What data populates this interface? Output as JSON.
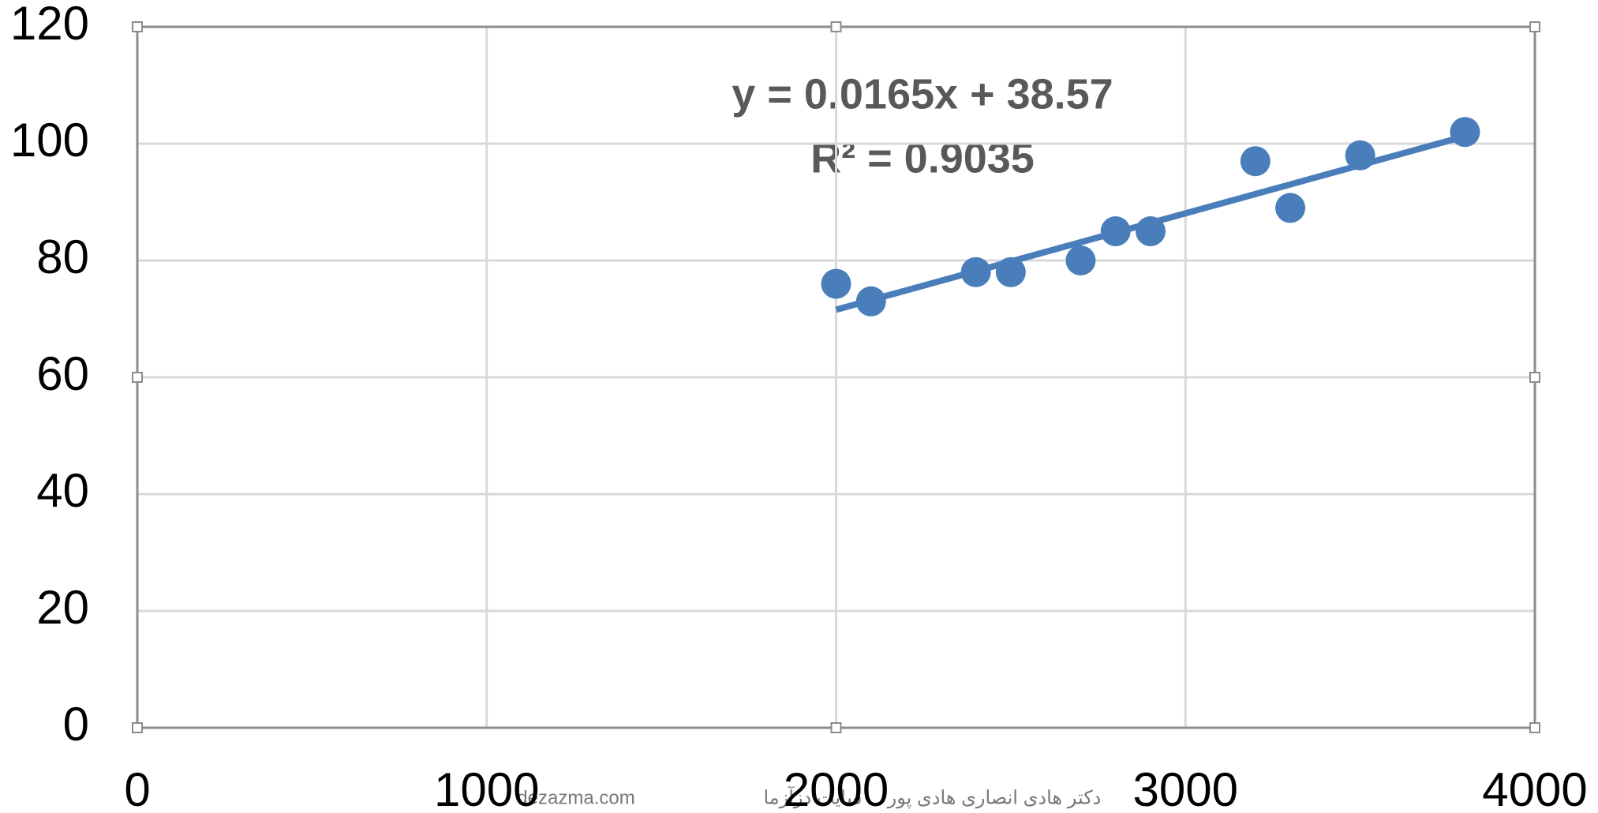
{
  "chart_data": {
    "type": "scatter",
    "x": [
      2000,
      2100,
      2400,
      2500,
      2700,
      2800,
      2900,
      3200,
      3300,
      3500,
      3800
    ],
    "values": [
      76,
      73,
      78,
      78,
      80,
      85,
      85,
      97,
      89,
      98,
      102
    ],
    "color": "#4a7ebb",
    "trendline": {
      "equation": "y = 0.0165x + 38.57",
      "r2": "R² = 0.9035",
      "color": "#4a7ebb",
      "x": [
        2000,
        3800
      ],
      "y": [
        71.57,
        101.27
      ]
    },
    "xlim": [
      0,
      4000
    ],
    "xticks": [
      0,
      1000,
      2000,
      3000,
      4000
    ],
    "ylim": [
      0,
      120
    ],
    "yticks": [
      0,
      20,
      40,
      60,
      80,
      100,
      120
    ],
    "grid": true
  },
  "footer": {
    "site": "dezazma.com",
    "credit": "دکتر هادی انصاری هادی پور",
    "site_name": "سایت دزآزما"
  }
}
